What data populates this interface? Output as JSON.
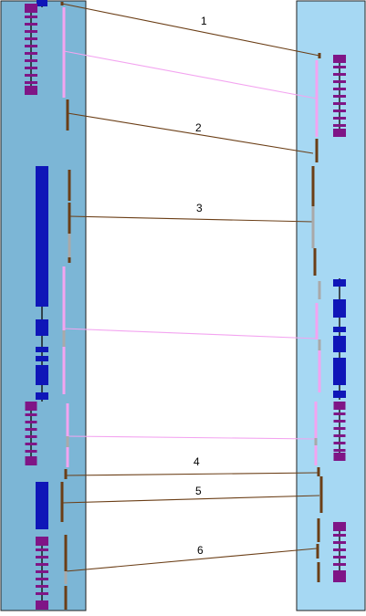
{
  "panels": {
    "left_color": "#7cb6d6",
    "right_color": "#a6d8f3",
    "border_color": "#222222"
  },
  "colors": {
    "brown": "#6b3e16",
    "pink": "#f3a4f0",
    "gray": "#a9a9a9",
    "blue": "#0f16b8",
    "purple": "#7f1586",
    "black": "#111111"
  },
  "links": [
    {
      "label": "1",
      "color": "brown"
    },
    {
      "label": "",
      "color": "pink"
    },
    {
      "label": "2",
      "color": "brown"
    },
    {
      "label": "3",
      "color": "brown"
    },
    {
      "label": "",
      "color": "pink"
    },
    {
      "label": "",
      "color": "pink"
    },
    {
      "label": "4",
      "color": "brown"
    },
    {
      "label": "5",
      "color": "brown"
    },
    {
      "label": "6",
      "color": "brown"
    }
  ]
}
